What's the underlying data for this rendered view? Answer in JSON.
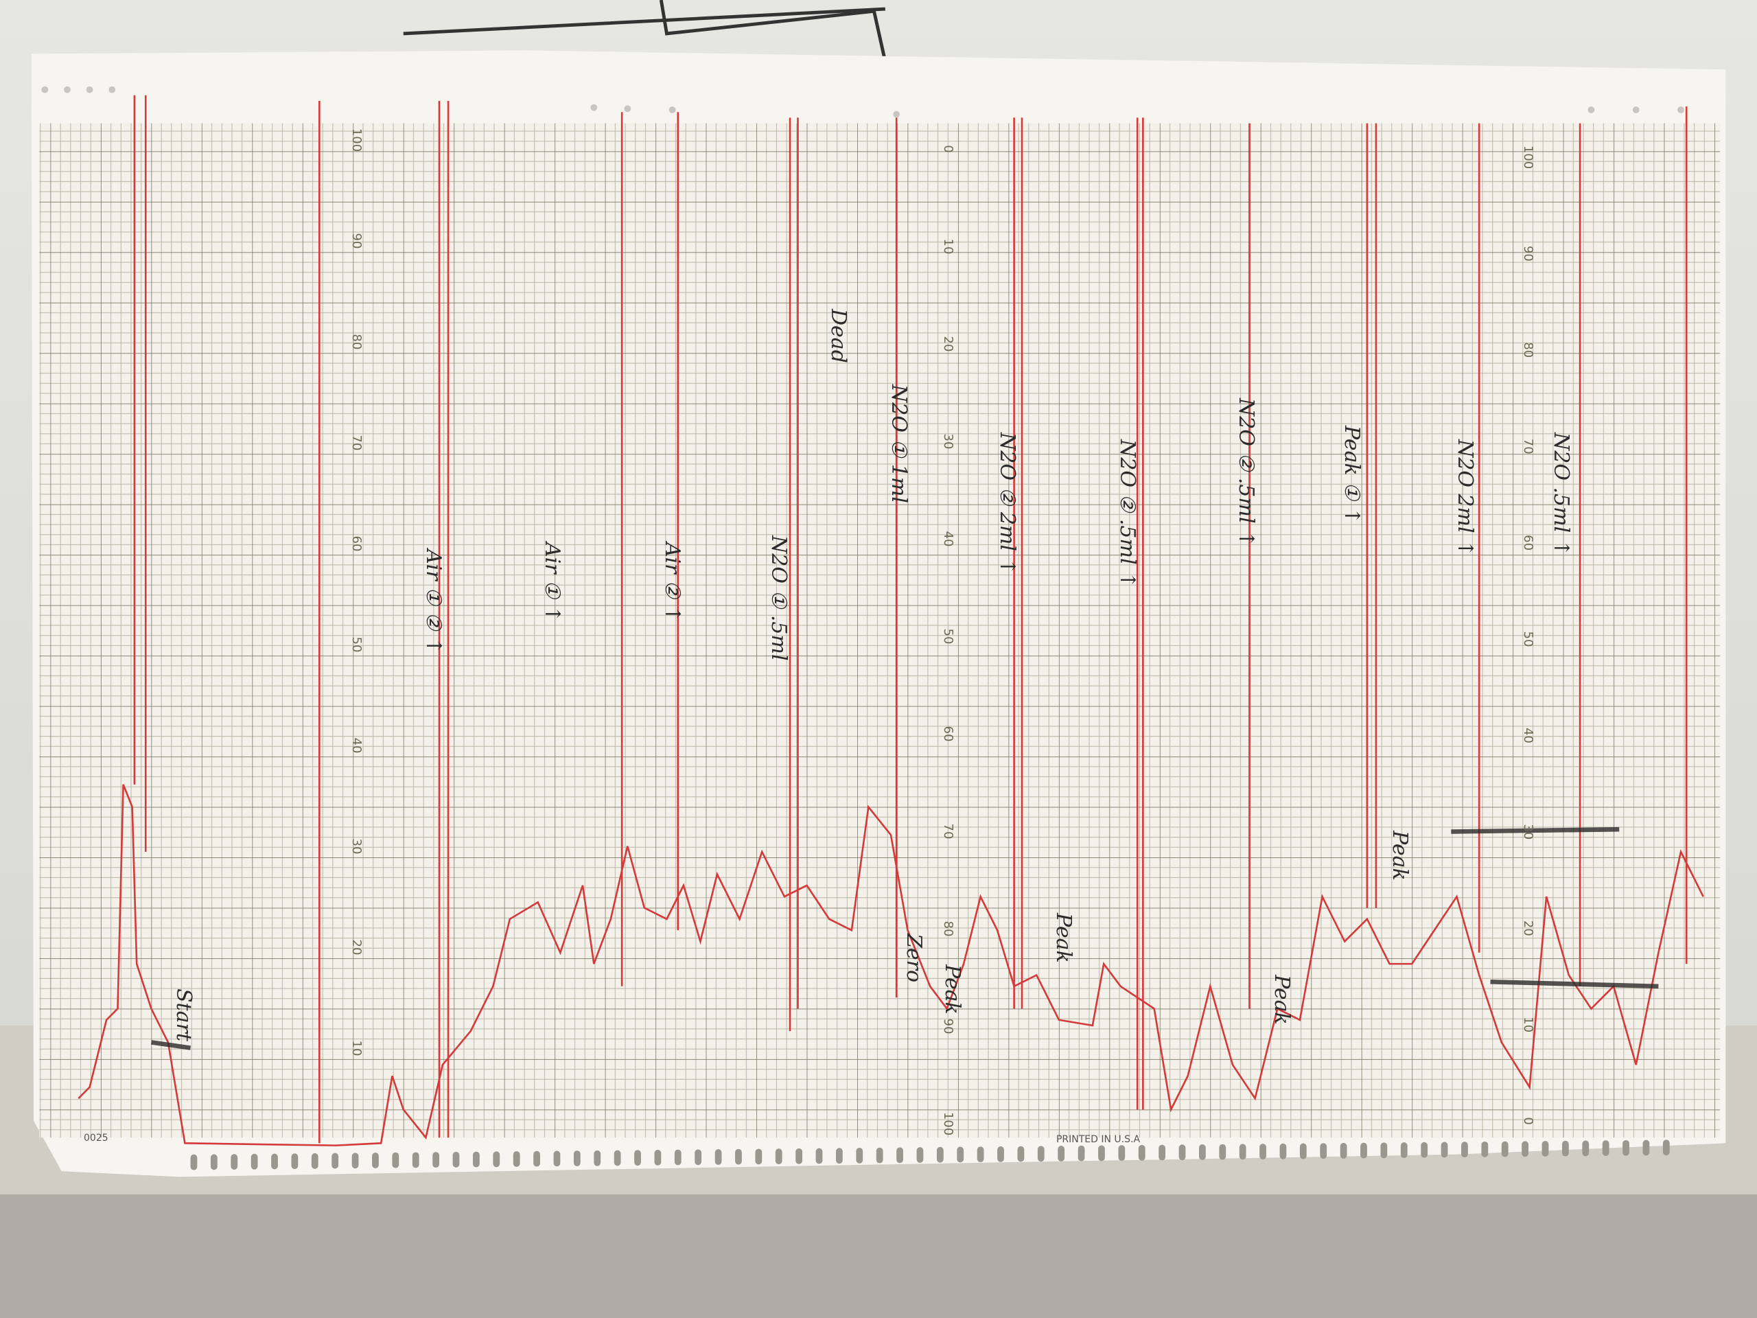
{
  "scales": [
    {
      "labels": [
        100,
        90,
        80,
        70,
        60,
        50,
        40,
        30,
        20,
        10
      ]
    },
    {
      "labels": [
        0,
        10,
        20,
        30,
        40,
        50,
        60,
        70,
        80,
        90,
        100
      ]
    },
    {
      "labels": [
        100,
        90,
        80,
        70,
        60,
        50,
        40,
        30,
        20,
        10,
        0
      ]
    }
  ],
  "annotations": [
    "Air ① ② ↑",
    "Air ① ↑",
    "Air ② ↑",
    "N2O ① .5ml",
    "Dead",
    "N2O ① 1ml",
    "N2O ② 2ml ↑",
    "N2O ② .5ml ↑",
    "N2O ② .5ml ↑",
    "Peak ① ↑",
    "N2O 2ml ↑",
    "N2O .5ml ↑",
    "Start",
    "Zero",
    "Peak",
    "Peak",
    "Peak",
    "Peak"
  ],
  "footer": {
    "left": "0025",
    "center": "PRINTED IN U.S.A"
  }
}
